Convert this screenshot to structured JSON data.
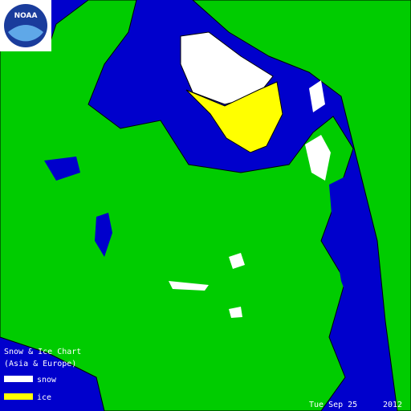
{
  "logo": {
    "text": "NOAA"
  },
  "legend": {
    "title": "Snow & Ice Chart",
    "subtitle": "(Asia & Europe)",
    "items": [
      {
        "label": "snow",
        "color": "#ffffff"
      },
      {
        "label": "ice",
        "color": "#ffff00"
      }
    ]
  },
  "date": {
    "day": "Tue Sep 25",
    "year": "2012"
  }
}
